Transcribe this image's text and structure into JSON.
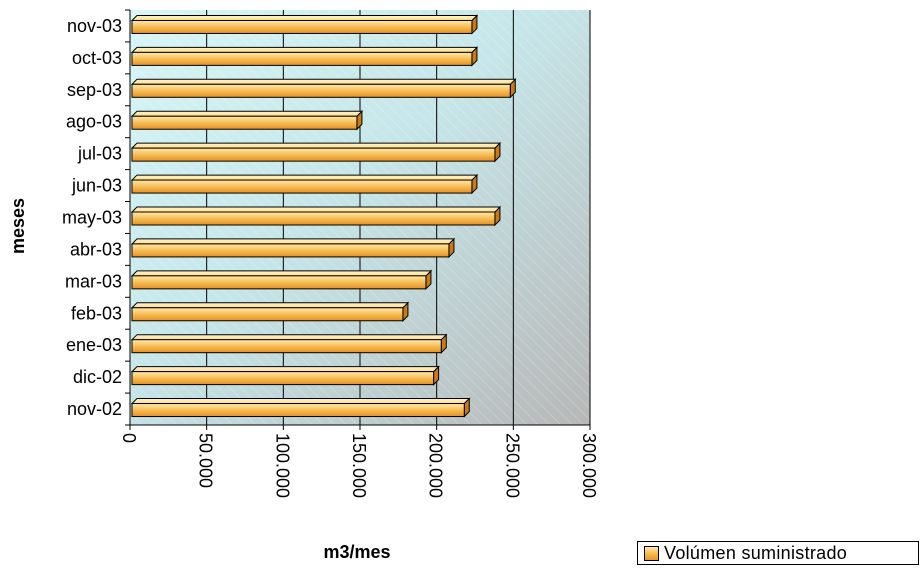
{
  "chart_data": {
    "type": "bar",
    "orientation": "horizontal",
    "title": "",
    "xlabel": "m3/mes",
    "ylabel": "meses",
    "categories": [
      "nov-02",
      "dic-02",
      "ene-03",
      "feb-03",
      "mar-03",
      "abr-03",
      "may-03",
      "jun-03",
      "jul-03",
      "ago-03",
      "sep-03",
      "oct-03",
      "nov-03"
    ],
    "series": [
      {
        "name": "Volúmen suministrado",
        "values": [
          218000,
          198000,
          203000,
          178000,
          193000,
          208000,
          238000,
          223000,
          238000,
          148000,
          248000,
          223000,
          223000
        ]
      }
    ],
    "xlim": [
      0,
      300000
    ],
    "xticks": [
      0,
      50000,
      100000,
      150000,
      200000,
      250000,
      300000
    ],
    "xtick_labels": [
      "0",
      "50.000",
      "100.000",
      "150.000",
      "200.000",
      "250.000",
      "300.000"
    ],
    "grid": true,
    "legend_position": "bottom-right",
    "colors": {
      "bar": "#f5b848",
      "bar_light": "#ffe9a8",
      "bar_dark": "#e8962a",
      "plot_bg_top": "#d6f3f6",
      "plot_bg_bottom": "#bdbdbd"
    }
  }
}
